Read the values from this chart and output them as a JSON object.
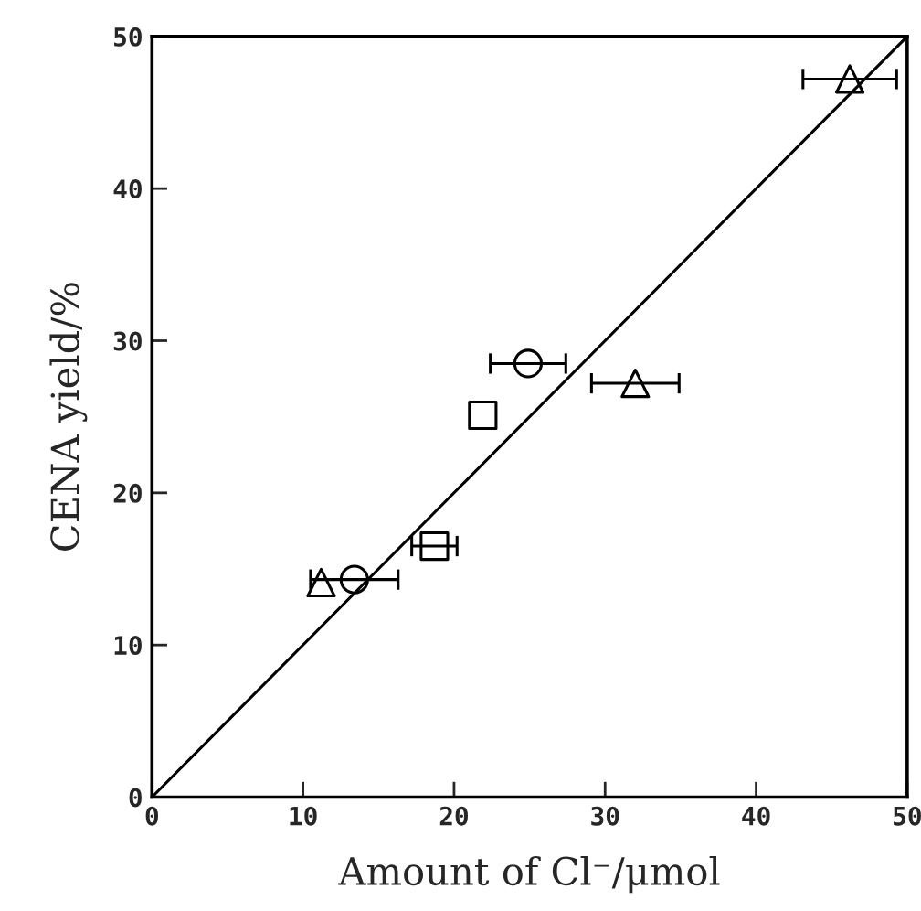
{
  "chart_data": {
    "type": "scatter",
    "xlabel": "Amount of Cl⁻/μmol",
    "ylabel": "CENA yield/%",
    "xlim": [
      0,
      50
    ],
    "ylim": [
      0,
      50
    ],
    "xticks": [
      0,
      10,
      20,
      30,
      40,
      50
    ],
    "yticks": [
      0,
      10,
      20,
      30,
      40,
      50
    ],
    "grid": false,
    "legend": false,
    "series": [
      {
        "marker": "circle",
        "color": "#000000",
        "x": [
          24.9,
          13.4
        ],
        "values": [
          28.5,
          14.3
        ],
        "xerrors": [
          2.5,
          2.9
        ]
      },
      {
        "marker": "square",
        "color": "#000000",
        "x": [
          21.9,
          18.7
        ],
        "values": [
          25.1,
          16.5
        ],
        "xerrors": [
          null,
          1.5
        ]
      },
      {
        "marker": "triangle",
        "color": "#000000",
        "x": [
          46.2,
          32.0,
          11.2
        ],
        "values": [
          47.2,
          27.2,
          14.1
        ],
        "xerrors": [
          3.1,
          2.9,
          null
        ]
      },
      {
        "type": "line",
        "marker": "none",
        "line_style": "solid",
        "color": "#000000",
        "x": [
          0,
          50
        ],
        "values": [
          0,
          50
        ]
      }
    ]
  }
}
